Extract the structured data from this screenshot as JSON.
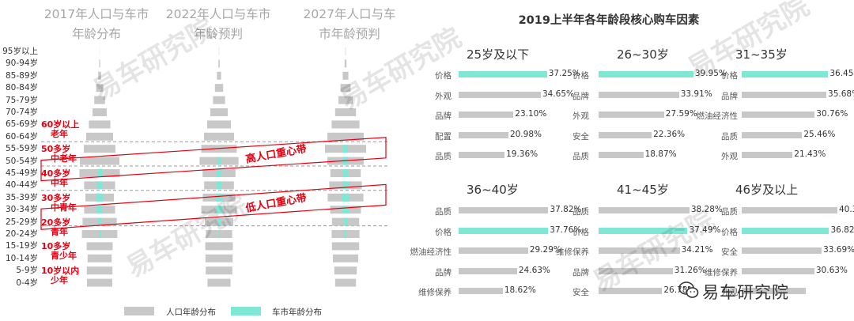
{
  "pyramid": {
    "titles": [
      [
        "2017年人口与车市",
        "年龄分布"
      ],
      [
        "2022年人口与车市",
        "年龄预判"
      ],
      [
        "2027年人口与车",
        "市年龄预判"
      ]
    ],
    "age_labels": [
      "95岁以上",
      "90-94岁",
      "85-89岁",
      "80-84岁",
      "75-79岁",
      "70-74岁",
      "65-69岁",
      "60-64岁",
      "55-59岁",
      "50-54岁",
      "45-49岁",
      "40-44岁",
      "35-39岁",
      "30-34岁",
      "25-29岁",
      "20-24岁",
      "15-19岁",
      "10-14岁",
      "5-9岁",
      "0-4岁"
    ],
    "group_notes": [
      {
        "line1": "60岁以上",
        "line2": "老年",
        "row": 6
      },
      {
        "line1": "50多岁",
        "line2": "中老年",
        "row": 8
      },
      {
        "line1": "40多岁",
        "line2": "中年",
        "row": 10
      },
      {
        "line1": "30多岁",
        "line2": "中青年",
        "row": 12
      },
      {
        "line1": "20多岁",
        "line2": "青年",
        "row": 14
      },
      {
        "line1": "10多岁",
        "line2": "青少年",
        "row": 16
      },
      {
        "line1": "10岁以内",
        "line2": "少年",
        "row": 18
      }
    ],
    "band_high": "高人口重心带",
    "band_low": "低人口重心带",
    "legend_population": "人口年龄分布",
    "legend_car": "车市年龄分布",
    "colors": {
      "population": "#c8c8c8",
      "car": "#7ee8d4",
      "red": "#e60012"
    }
  },
  "chart_data": [
    {
      "type": "bar",
      "orientation": "horizontal-pyramid",
      "title": "2017年人口与车市年龄分布",
      "categories": [
        "95岁以上",
        "90-94岁",
        "85-89岁",
        "80-84岁",
        "75-79岁",
        "70-74岁",
        "65-69岁",
        "60-64岁",
        "55-59岁",
        "50-54岁",
        "45-49岁",
        "40-44岁",
        "35-39岁",
        "30-34岁",
        "25-29岁",
        "20-24岁",
        "15-19岁",
        "10-14岁",
        "5-9岁",
        "0-4岁"
      ],
      "series": [
        {
          "name": "人口年龄分布",
          "values": [
            0.05,
            0.3,
            0.9,
            2.2,
            3.4,
            4.5,
            6.8,
            8.5,
            10.0,
            12.5,
            12.8,
            9.8,
            9.0,
            9.8,
            10.8,
            11.2,
            8.2,
            7.6,
            8.1,
            8.0
          ]
        },
        {
          "name": "车市年龄分布",
          "values": [
            0,
            0,
            0,
            0,
            0,
            0,
            0,
            0,
            0,
            0,
            1.5,
            1.7,
            2.3,
            1.9,
            1.2,
            0.5,
            0,
            0,
            0,
            0
          ]
        }
      ]
    },
    {
      "type": "bar",
      "orientation": "horizontal-pyramid",
      "title": "2022年人口与车市年龄预判",
      "categories": [
        "95岁以上",
        "90-94岁",
        "85-89岁",
        "80-84岁",
        "75-79岁",
        "70-74岁",
        "65-69岁",
        "60-64岁",
        "55-59岁",
        "50-54岁",
        "45-49岁",
        "40-44岁",
        "35-39岁",
        "30-34岁",
        "25-29岁",
        "20-24岁",
        "15-19岁",
        "10-14岁",
        "5-9岁",
        "0-4岁"
      ],
      "series": [
        {
          "name": "人口年龄分布",
          "values": [
            0.1,
            0.4,
            1.3,
            2.6,
            3.8,
            5.5,
            7.5,
            9.5,
            11.2,
            12.3,
            10.4,
            9.4,
            10.3,
            11.2,
            9.0,
            8.3,
            8.7,
            8.6,
            8.4,
            7.3
          ]
        },
        {
          "name": "车市年龄分布",
          "values": [
            0,
            0,
            0,
            0,
            0,
            0,
            0,
            0,
            0,
            1.1,
            1.6,
            1.7,
            2.2,
            1.9,
            0.9,
            0.3,
            0,
            0,
            0,
            0
          ]
        }
      ]
    },
    {
      "type": "bar",
      "orientation": "horizontal-pyramid",
      "title": "2027年人口与车市年龄预判",
      "categories": [
        "95岁以上",
        "90-94岁",
        "85-89岁",
        "80-84岁",
        "75-79岁",
        "70-74岁",
        "65-69岁",
        "60-64岁",
        "55-59岁",
        "50-54岁",
        "45-49岁",
        "40-44岁",
        "35-39岁",
        "30-34岁",
        "25-29岁",
        "20-24岁",
        "15-19岁",
        "10-14岁",
        "5-9岁",
        "0-4岁"
      ],
      "series": [
        {
          "name": "人口年龄分布",
          "values": [
            0.15,
            0.6,
            1.8,
            3.2,
            4.5,
            6.6,
            8.8,
            11.5,
            13.0,
            11.5,
            9.6,
            10.3,
            11.3,
            9.7,
            8.6,
            8.8,
            8.6,
            8.0,
            7.1,
            6.6
          ]
        },
        {
          "name": "车市年龄分布",
          "values": [
            0,
            0,
            0,
            0,
            0,
            0,
            0,
            0,
            1.5,
            1.6,
            1.8,
            2.0,
            2.3,
            2.1,
            1.2,
            0.6,
            0,
            0,
            0,
            0
          ]
        }
      ]
    },
    {
      "type": "bar",
      "title": "2019上半年各年龄段核心购车因素",
      "panels": [
        {
          "title": "25岁及以下",
          "categories": [
            "价格",
            "外观",
            "品牌",
            "配置",
            "品质"
          ],
          "values": [
            37.25,
            34.65,
            23.1,
            20.98,
            19.36
          ],
          "labels": [
            "37.25%",
            "34.65%",
            "23.10%",
            "20.98%",
            "19.36%"
          ],
          "highlight": 0
        },
        {
          "title": "26~30岁",
          "categories": [
            "价格",
            "品牌",
            "外观",
            "安全",
            "品质"
          ],
          "values": [
            39.95,
            33.91,
            27.59,
            22.36,
            18.87
          ],
          "labels": [
            "39.95%",
            "33.91%",
            "27.59%",
            "22.36%",
            "18.87%"
          ],
          "highlight": 0
        },
        {
          "title": "31~35岁",
          "categories": [
            "价格",
            "品牌",
            "燃油经济性",
            "品质",
            "外观"
          ],
          "values": [
            36.45,
            35.68,
            30.76,
            25.46,
            21.43
          ],
          "labels": [
            "36.45%",
            "35.68%",
            "30.76%",
            "25.46%",
            "21.43%"
          ],
          "highlight": 0
        },
        {
          "title": "36~40岁",
          "categories": [
            "品质",
            "价格",
            "燃油经济性",
            "品牌",
            "维修保养"
          ],
          "values": [
            37.82,
            37.76,
            29.29,
            24.63,
            18.62
          ],
          "labels": [
            "37.82%",
            "37.76%",
            "29.29%",
            "24.63%",
            "18.62%"
          ],
          "highlight": 1
        },
        {
          "title": "41~45岁",
          "categories": [
            "品质",
            "价格",
            "维修保养",
            "品牌",
            "安全"
          ],
          "values": [
            38.28,
            37.49,
            34.21,
            31.26,
            26.78
          ],
          "labels": [
            "38.28%",
            "37.49%",
            "34.21%",
            "31.26%",
            "26.78%"
          ],
          "highlight": 1
        },
        {
          "title": "46岁及以上",
          "categories": [
            "品质",
            "价格",
            "安全",
            "维修保养",
            "外观"
          ],
          "values": [
            40.32,
            36.82,
            33.69,
            30.63,
            27.0
          ],
          "labels": [
            "40.32%",
            "36.82%",
            "33.69%",
            "30.63%",
            ""
          ],
          "highlight": 1
        }
      ]
    }
  ],
  "logo": {
    "text": "易车研究院",
    "icon": "wechat-icon"
  }
}
